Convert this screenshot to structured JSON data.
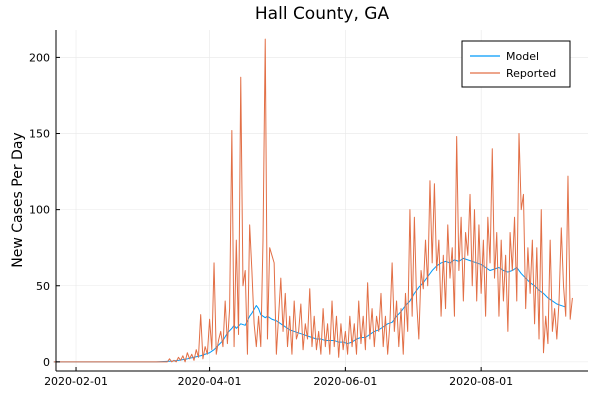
{
  "chart_data": {
    "type": "line",
    "title": "Hall County, GA",
    "xlabel": "",
    "ylabel": "New Cases Per Day",
    "x_axis_type": "date",
    "xlim": [
      "2020-01-23",
      "2020-09-18"
    ],
    "ylim": [
      -6,
      218
    ],
    "x_ticks": [
      "2020-02-01",
      "2020-04-01",
      "2020-06-01",
      "2020-08-01"
    ],
    "y_ticks": [
      0,
      50,
      100,
      150,
      200
    ],
    "grid": true,
    "legend_position": "top-right",
    "colors": {
      "Model": "#009AF9",
      "Reported": "#E26F46"
    },
    "series": [
      {
        "name": "Model",
        "points": [
          [
            "2020-01-22",
            0
          ],
          [
            "2020-02-20",
            0
          ],
          [
            "2020-03-08",
            0
          ],
          [
            "2020-03-15",
            0.5
          ],
          [
            "2020-03-18",
            1
          ],
          [
            "2020-03-22",
            2
          ],
          [
            "2020-03-25",
            3
          ],
          [
            "2020-03-28",
            4
          ],
          [
            "2020-04-01",
            6
          ],
          [
            "2020-04-03",
            8
          ],
          [
            "2020-04-05",
            11
          ],
          [
            "2020-04-07",
            14
          ],
          [
            "2020-04-09",
            19
          ],
          [
            "2020-04-11",
            22
          ],
          [
            "2020-04-12",
            24
          ],
          [
            "2020-04-13",
            22
          ],
          [
            "2020-04-15",
            25
          ],
          [
            "2020-04-17",
            24
          ],
          [
            "2020-04-19",
            30
          ],
          [
            "2020-04-20",
            32
          ],
          [
            "2020-04-22",
            37
          ],
          [
            "2020-04-23",
            35
          ],
          [
            "2020-04-24",
            31
          ],
          [
            "2020-04-26",
            29
          ],
          [
            "2020-04-27",
            30
          ],
          [
            "2020-04-29",
            28
          ],
          [
            "2020-05-01",
            27
          ],
          [
            "2020-05-03",
            25
          ],
          [
            "2020-05-05",
            23
          ],
          [
            "2020-05-07",
            21
          ],
          [
            "2020-05-09",
            20
          ],
          [
            "2020-05-11",
            19
          ],
          [
            "2020-05-13",
            18
          ],
          [
            "2020-05-15",
            17
          ],
          [
            "2020-05-17",
            16
          ],
          [
            "2020-05-19",
            15
          ],
          [
            "2020-05-21",
            15
          ],
          [
            "2020-05-23",
            14
          ],
          [
            "2020-05-25",
            14
          ],
          [
            "2020-05-27",
            14
          ],
          [
            "2020-05-29",
            13
          ],
          [
            "2020-05-31",
            13
          ],
          [
            "2020-06-02",
            12
          ],
          [
            "2020-06-04",
            13
          ],
          [
            "2020-06-06",
            15
          ],
          [
            "2020-06-08",
            16
          ],
          [
            "2020-06-10",
            16
          ],
          [
            "2020-06-12",
            18
          ],
          [
            "2020-06-14",
            20
          ],
          [
            "2020-06-16",
            21
          ],
          [
            "2020-06-18",
            23
          ],
          [
            "2020-06-20",
            25
          ],
          [
            "2020-06-22",
            26
          ],
          [
            "2020-06-24",
            30
          ],
          [
            "2020-06-26",
            33
          ],
          [
            "2020-06-28",
            37
          ],
          [
            "2020-06-30",
            40
          ],
          [
            "2020-07-02",
            45
          ],
          [
            "2020-07-04",
            49
          ],
          [
            "2020-07-06",
            52
          ],
          [
            "2020-07-08",
            56
          ],
          [
            "2020-07-10",
            60
          ],
          [
            "2020-07-12",
            63
          ],
          [
            "2020-07-14",
            65
          ],
          [
            "2020-07-16",
            66
          ],
          [
            "2020-07-18",
            65
          ],
          [
            "2020-07-20",
            67
          ],
          [
            "2020-07-22",
            66
          ],
          [
            "2020-07-24",
            68
          ],
          [
            "2020-07-26",
            67
          ],
          [
            "2020-07-28",
            66
          ],
          [
            "2020-07-30",
            65
          ],
          [
            "2020-08-01",
            64
          ],
          [
            "2020-08-03",
            62
          ],
          [
            "2020-08-05",
            60
          ],
          [
            "2020-08-07",
            61
          ],
          [
            "2020-08-09",
            62
          ],
          [
            "2020-08-11",
            60
          ],
          [
            "2020-08-13",
            59
          ],
          [
            "2020-08-15",
            60
          ],
          [
            "2020-08-17",
            62
          ],
          [
            "2020-08-19",
            58
          ],
          [
            "2020-08-21",
            55
          ],
          [
            "2020-08-23",
            52
          ],
          [
            "2020-08-25",
            50
          ],
          [
            "2020-08-27",
            47
          ],
          [
            "2020-08-29",
            45
          ],
          [
            "2020-08-31",
            42
          ],
          [
            "2020-09-02",
            40
          ],
          [
            "2020-09-04",
            38
          ],
          [
            "2020-09-06",
            37
          ],
          [
            "2020-09-08",
            36
          ]
        ]
      },
      {
        "name": "Reported",
        "points": [
          [
            "2020-01-22",
            0
          ],
          [
            "2020-03-13",
            0
          ],
          [
            "2020-03-14",
            2
          ],
          [
            "2020-03-15",
            0
          ],
          [
            "2020-03-16",
            1
          ],
          [
            "2020-03-17",
            0
          ],
          [
            "2020-03-18",
            3
          ],
          [
            "2020-03-19",
            1
          ],
          [
            "2020-03-20",
            4
          ],
          [
            "2020-03-21",
            0
          ],
          [
            "2020-03-22",
            6
          ],
          [
            "2020-03-23",
            2
          ],
          [
            "2020-03-24",
            5
          ],
          [
            "2020-03-25",
            1
          ],
          [
            "2020-03-26",
            8
          ],
          [
            "2020-03-27",
            3
          ],
          [
            "2020-03-28",
            31
          ],
          [
            "2020-03-29",
            2
          ],
          [
            "2020-03-30",
            10
          ],
          [
            "2020-03-31",
            5
          ],
          [
            "2020-04-01",
            28
          ],
          [
            "2020-04-02",
            8
          ],
          [
            "2020-04-03",
            65
          ],
          [
            "2020-04-04",
            5
          ],
          [
            "2020-04-05",
            14
          ],
          [
            "2020-04-06",
            20
          ],
          [
            "2020-04-07",
            10
          ],
          [
            "2020-04-08",
            40
          ],
          [
            "2020-04-09",
            12
          ],
          [
            "2020-04-10",
            35
          ],
          [
            "2020-04-11",
            152
          ],
          [
            "2020-04-12",
            10
          ],
          [
            "2020-04-13",
            80
          ],
          [
            "2020-04-14",
            18
          ],
          [
            "2020-04-15",
            187
          ],
          [
            "2020-04-16",
            50
          ],
          [
            "2020-04-17",
            60
          ],
          [
            "2020-04-18",
            5
          ],
          [
            "2020-04-19",
            90
          ],
          [
            "2020-04-20",
            60
          ],
          [
            "2020-04-21",
            25
          ],
          [
            "2020-04-22",
            10
          ],
          [
            "2020-04-23",
            30
          ],
          [
            "2020-04-24",
            10
          ],
          [
            "2020-04-25",
            80
          ],
          [
            "2020-04-26",
            212
          ],
          [
            "2020-04-27",
            15
          ],
          [
            "2020-04-28",
            75
          ],
          [
            "2020-04-29",
            70
          ],
          [
            "2020-04-30",
            65
          ],
          [
            "2020-05-01",
            5
          ],
          [
            "2020-05-02",
            30
          ],
          [
            "2020-05-03",
            55
          ],
          [
            "2020-05-04",
            20
          ],
          [
            "2020-05-05",
            45
          ],
          [
            "2020-05-06",
            10
          ],
          [
            "2020-05-07",
            30
          ],
          [
            "2020-05-08",
            5
          ],
          [
            "2020-05-09",
            40
          ],
          [
            "2020-05-10",
            15
          ],
          [
            "2020-05-11",
            20
          ],
          [
            "2020-05-12",
            38
          ],
          [
            "2020-05-13",
            8
          ],
          [
            "2020-05-14",
            25
          ],
          [
            "2020-05-15",
            15
          ],
          [
            "2020-05-16",
            48
          ],
          [
            "2020-05-17",
            10
          ],
          [
            "2020-05-18",
            30
          ],
          [
            "2020-05-19",
            8
          ],
          [
            "2020-05-20",
            20
          ],
          [
            "2020-05-21",
            5
          ],
          [
            "2020-05-22",
            35
          ],
          [
            "2020-05-23",
            10
          ],
          [
            "2020-05-24",
            25
          ],
          [
            "2020-05-25",
            5
          ],
          [
            "2020-05-26",
            40
          ],
          [
            "2020-05-27",
            10
          ],
          [
            "2020-05-28",
            30
          ],
          [
            "2020-05-29",
            3
          ],
          [
            "2020-05-30",
            25
          ],
          [
            "2020-05-31",
            8
          ],
          [
            "2020-06-01",
            20
          ],
          [
            "2020-06-02",
            5
          ],
          [
            "2020-06-03",
            30
          ],
          [
            "2020-06-04",
            10
          ],
          [
            "2020-06-05",
            25
          ],
          [
            "2020-06-06",
            5
          ],
          [
            "2020-06-07",
            40
          ],
          [
            "2020-06-08",
            12
          ],
          [
            "2020-06-09",
            30
          ],
          [
            "2020-06-10",
            8
          ],
          [
            "2020-06-11",
            52
          ],
          [
            "2020-06-12",
            15
          ],
          [
            "2020-06-13",
            35
          ],
          [
            "2020-06-14",
            10
          ],
          [
            "2020-06-15",
            30
          ],
          [
            "2020-06-16",
            20
          ],
          [
            "2020-06-17",
            45
          ],
          [
            "2020-06-18",
            10
          ],
          [
            "2020-06-19",
            30
          ],
          [
            "2020-06-20",
            5
          ],
          [
            "2020-06-21",
            25
          ],
          [
            "2020-06-22",
            65
          ],
          [
            "2020-06-23",
            20
          ],
          [
            "2020-06-24",
            40
          ],
          [
            "2020-06-25",
            10
          ],
          [
            "2020-06-26",
            35
          ],
          [
            "2020-06-27",
            5
          ],
          [
            "2020-06-28",
            45
          ],
          [
            "2020-06-29",
            20
          ],
          [
            "2020-06-30",
            100
          ],
          [
            "2020-07-01",
            30
          ],
          [
            "2020-07-02",
            95
          ],
          [
            "2020-07-03",
            40
          ],
          [
            "2020-07-04",
            15
          ],
          [
            "2020-07-05",
            60
          ],
          [
            "2020-07-06",
            48
          ],
          [
            "2020-07-07",
            80
          ],
          [
            "2020-07-08",
            50
          ],
          [
            "2020-07-09",
            119
          ],
          [
            "2020-07-10",
            65
          ],
          [
            "2020-07-11",
            117
          ],
          [
            "2020-07-12",
            60
          ],
          [
            "2020-07-13",
            80
          ],
          [
            "2020-07-14",
            30
          ],
          [
            "2020-07-15",
            70
          ],
          [
            "2020-07-16",
            35
          ],
          [
            "2020-07-17",
            90
          ],
          [
            "2020-07-18",
            55
          ],
          [
            "2020-07-19",
            75
          ],
          [
            "2020-07-20",
            30
          ],
          [
            "2020-07-21",
            148
          ],
          [
            "2020-07-22",
            60
          ],
          [
            "2020-07-23",
            95
          ],
          [
            "2020-07-24",
            40
          ],
          [
            "2020-07-25",
            85
          ],
          [
            "2020-07-26",
            70
          ],
          [
            "2020-07-27",
            110
          ],
          [
            "2020-07-28",
            50
          ],
          [
            "2020-07-29",
            100
          ],
          [
            "2020-07-30",
            40
          ],
          [
            "2020-07-31",
            90
          ],
          [
            "2020-08-01",
            45
          ],
          [
            "2020-08-02",
            80
          ],
          [
            "2020-08-03",
            30
          ],
          [
            "2020-08-04",
            95
          ],
          [
            "2020-08-05",
            65
          ],
          [
            "2020-08-06",
            140
          ],
          [
            "2020-08-07",
            55
          ],
          [
            "2020-08-08",
            85
          ],
          [
            "2020-08-09",
            30
          ],
          [
            "2020-08-10",
            80
          ],
          [
            "2020-08-11",
            40
          ],
          [
            "2020-08-12",
            70
          ],
          [
            "2020-08-13",
            20
          ],
          [
            "2020-08-14",
            85
          ],
          [
            "2020-08-15",
            60
          ],
          [
            "2020-08-16",
            95
          ],
          [
            "2020-08-17",
            40
          ],
          [
            "2020-08-18",
            150
          ],
          [
            "2020-08-19",
            100
          ],
          [
            "2020-08-20",
            110
          ],
          [
            "2020-08-21",
            35
          ],
          [
            "2020-08-22",
            75
          ],
          [
            "2020-08-23",
            45
          ],
          [
            "2020-08-24",
            80
          ],
          [
            "2020-08-25",
            25
          ],
          [
            "2020-08-26",
            75
          ],
          [
            "2020-08-27",
            15
          ],
          [
            "2020-08-28",
            100
          ],
          [
            "2020-08-29",
            6
          ],
          [
            "2020-08-30",
            30
          ],
          [
            "2020-08-31",
            12
          ],
          [
            "2020-09-01",
            80
          ],
          [
            "2020-09-02",
            20
          ],
          [
            "2020-09-03",
            35
          ],
          [
            "2020-09-04",
            15
          ],
          [
            "2020-09-05",
            40
          ],
          [
            "2020-09-06",
            88
          ],
          [
            "2020-09-07",
            50
          ],
          [
            "2020-09-08",
            30
          ],
          [
            "2020-09-09",
            122
          ],
          [
            "2020-09-10",
            28
          ],
          [
            "2020-09-11",
            42
          ]
        ]
      }
    ]
  }
}
